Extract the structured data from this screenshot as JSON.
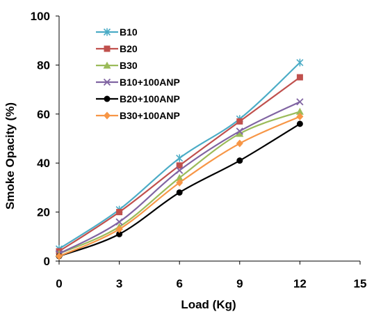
{
  "chart_data": {
    "type": "line",
    "xlabel": "Load (Kg)",
    "ylabel": "Smoke Opacity (%)",
    "xlim": [
      0,
      15
    ],
    "ylim": [
      0,
      100
    ],
    "xticks": [
      "0",
      "3",
      "6",
      "9",
      "12",
      "15"
    ],
    "yticks": [
      "0",
      "20",
      "40",
      "60",
      "80",
      "100"
    ],
    "grid": false,
    "legend_position": "top-left",
    "x": [
      0,
      3,
      6,
      9,
      12
    ],
    "series": [
      {
        "name": "B10",
        "color": "#4BACC6",
        "marker": "star",
        "values": [
          5,
          21,
          42,
          58,
          81
        ]
      },
      {
        "name": "B20",
        "color": "#C0504D",
        "marker": "square",
        "values": [
          4,
          20,
          39,
          57,
          75
        ]
      },
      {
        "name": "B30",
        "color": "#9BBB59",
        "marker": "triangle",
        "values": [
          3,
          14,
          34,
          52,
          61
        ]
      },
      {
        "name": "B10+100ANP",
        "color": "#8064A2",
        "marker": "x",
        "values": [
          3,
          16,
          37,
          53,
          65
        ]
      },
      {
        "name": "B20+100ANP",
        "color": "#000000",
        "marker": "circle",
        "values": [
          2,
          11,
          28,
          41,
          56
        ]
      },
      {
        "name": "B30+100ANP",
        "color": "#F79646",
        "marker": "diamond",
        "values": [
          2,
          13,
          32,
          48,
          59
        ]
      }
    ]
  }
}
